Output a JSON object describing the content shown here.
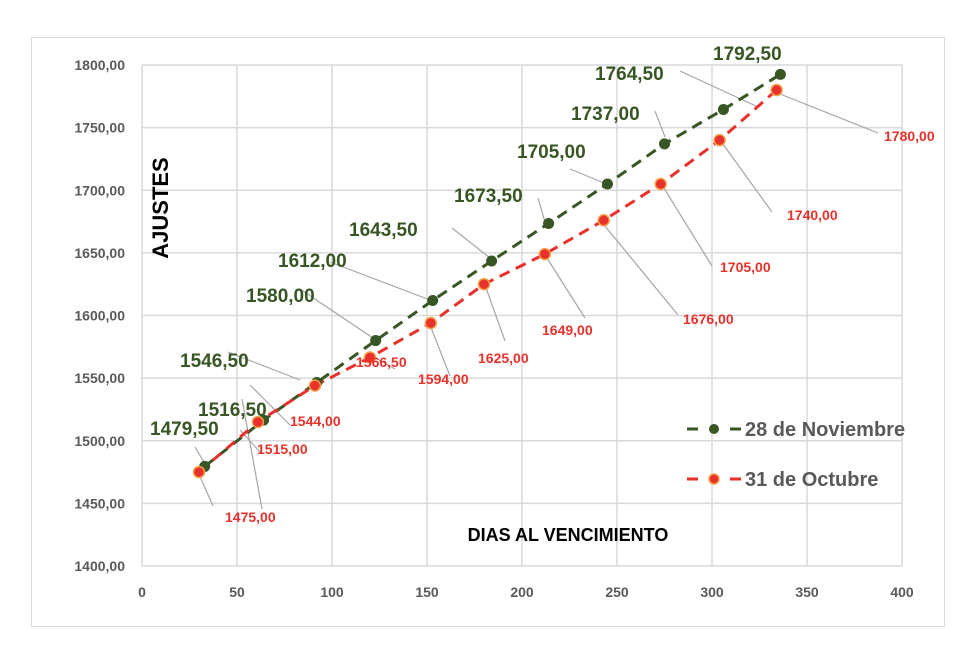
{
  "chart_data": {
    "type": "line",
    "title": "",
    "xlabel": "DIAS AL VENCIMIENTO",
    "ylabel": "AJUSTES",
    "xlim": [
      0,
      400
    ],
    "ylim": [
      1400,
      1800
    ],
    "x_ticks": [
      "0",
      "50",
      "100",
      "150",
      "200",
      "250",
      "300",
      "350",
      "400"
    ],
    "y_ticks": [
      "1400,00",
      "1450,00",
      "1500,00",
      "1550,00",
      "1600,00",
      "1650,00",
      "1700,00",
      "1750,00",
      "1800,00"
    ],
    "grid": true,
    "legend_position": "right-inside",
    "series": [
      {
        "name": "28 de Noviembre",
        "color": "#375623",
        "line_style": "dashed",
        "x": [
          33,
          64,
          92,
          123,
          153,
          184,
          214,
          245,
          275,
          306,
          336
        ],
        "values": [
          1479.5,
          1516.5,
          1546.5,
          1580.0,
          1612.0,
          1643.5,
          1673.5,
          1705.0,
          1737.0,
          1764.5,
          1792.5
        ],
        "labels": [
          "1479,50",
          "1516,50",
          "1546,50",
          "1580,00",
          "1612,00",
          "1643,50",
          "1673,50",
          "1705,00",
          "1737,00",
          "1764,50",
          "1792,50"
        ]
      },
      {
        "name": "31 de Octubre",
        "color": "#e8312a",
        "line_style": "dashed",
        "x": [
          30,
          61,
          91,
          120,
          152,
          180,
          212,
          243,
          273,
          304,
          334
        ],
        "values": [
          1475.0,
          1515.0,
          1544.0,
          1566.5,
          1594.0,
          1625.0,
          1649.0,
          1676.0,
          1705.0,
          1740.0,
          1780.0
        ],
        "labels": [
          "1475,00",
          "1515,00",
          "1544,00",
          "1566,50",
          "1594,00",
          "1625,00",
          "1649,00",
          "1676,00",
          "1705,00",
          "1740,00",
          "1780,00"
        ]
      }
    ]
  },
  "legend": {
    "items": [
      {
        "label": "28 de Noviembre",
        "color": "#375623"
      },
      {
        "label": "31 de Octubre",
        "color": "#e8312a"
      }
    ]
  }
}
